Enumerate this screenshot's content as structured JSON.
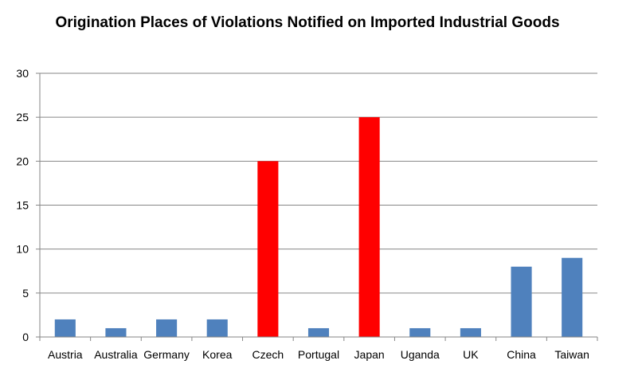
{
  "chart_data": {
    "type": "bar",
    "title": "Origination Places of Violations Notified on Imported Industrial Goods",
    "xlabel": "",
    "ylabel": "",
    "categories": [
      "Austria",
      "Australia",
      "Germany",
      "Korea",
      "Czech",
      "Portugal",
      "Japan",
      "Uganda",
      "UK",
      "China",
      "Taiwan"
    ],
    "values": [
      2,
      1,
      2,
      2,
      20,
      1,
      25,
      1,
      1,
      8,
      9
    ],
    "bar_colors": [
      "#4f81bd",
      "#4f81bd",
      "#4f81bd",
      "#4f81bd",
      "#ff0000",
      "#4f81bd",
      "#ff0000",
      "#4f81bd",
      "#4f81bd",
      "#4f81bd",
      "#4f81bd"
    ],
    "ylim": [
      0,
      30
    ],
    "yticks": [
      0,
      5,
      10,
      15,
      20,
      25,
      30
    ],
    "grid": true,
    "legend": "none"
  }
}
